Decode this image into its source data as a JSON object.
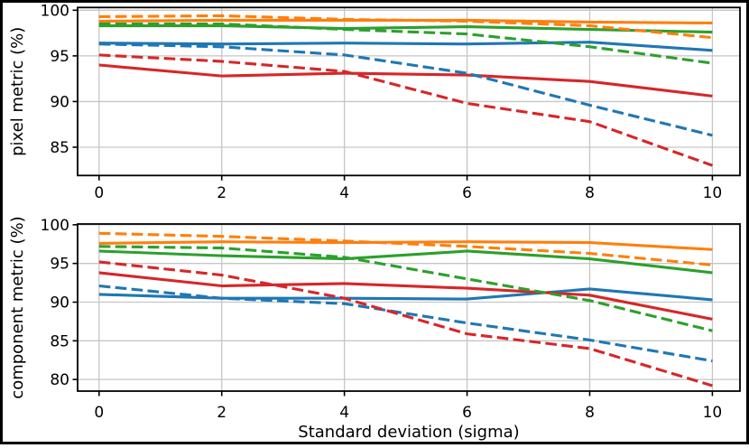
{
  "figure": {
    "kind": "dual-subplot line chart",
    "background": "#ffffff",
    "border_color": "#000000",
    "grid_color": "#c6c6c6",
    "spine_color": "#000000",
    "text_color": "#000000",
    "palette": {
      "blue": "#1f77b4",
      "orange": "#ff7f0e",
      "green": "#2ca02c",
      "red": "#d62728"
    }
  },
  "chart_data": [
    {
      "type": "line",
      "title": "",
      "xlabel": "",
      "ylabel": "pixel metric (%)",
      "x": [
        0,
        2,
        4,
        6,
        8,
        10
      ],
      "xticks": [
        "0",
        "2",
        "4",
        "6",
        "8",
        "10"
      ],
      "yticks": [
        85,
        90,
        95,
        100
      ],
      "xlim": [
        -0.35,
        10.45
      ],
      "ylim": [
        81.9,
        100.3
      ],
      "grid": true,
      "legend": false,
      "series": [
        {
          "name": "blue-solid",
          "color": "blue",
          "linestyle": "solid",
          "values": [
            96.4,
            96.3,
            96.4,
            96.3,
            96.5,
            95.6
          ]
        },
        {
          "name": "orange-solid",
          "color": "orange",
          "linestyle": "solid",
          "values": [
            98.8,
            98.9,
            98.9,
            98.9,
            98.7,
            98.6
          ]
        },
        {
          "name": "green-solid",
          "color": "green",
          "linestyle": "solid",
          "values": [
            98.3,
            98.3,
            98.0,
            98.2,
            97.9,
            97.6
          ]
        },
        {
          "name": "red-solid",
          "color": "red",
          "linestyle": "solid",
          "values": [
            94.0,
            92.8,
            93.1,
            92.9,
            92.2,
            90.6
          ]
        },
        {
          "name": "blue-dashed",
          "color": "blue",
          "linestyle": "dashed",
          "values": [
            96.3,
            96.0,
            95.1,
            93.1,
            89.6,
            86.3
          ]
        },
        {
          "name": "orange-dashed",
          "color": "orange",
          "linestyle": "dashed",
          "values": [
            99.3,
            99.4,
            99.0,
            98.8,
            98.3,
            97.0
          ]
        },
        {
          "name": "green-dashed",
          "color": "green",
          "linestyle": "dashed",
          "values": [
            98.5,
            98.5,
            97.9,
            97.4,
            96.0,
            94.2
          ]
        },
        {
          "name": "red-dashed",
          "color": "red",
          "linestyle": "dashed",
          "values": [
            95.1,
            94.4,
            93.3,
            89.8,
            87.8,
            83.0
          ]
        }
      ]
    },
    {
      "type": "line",
      "title": "",
      "xlabel": "Standard deviation (sigma)",
      "ylabel": "component metric (%)",
      "x": [
        0,
        2,
        4,
        6,
        8,
        10
      ],
      "xticks": [
        "0",
        "2",
        "4",
        "6",
        "8",
        "10"
      ],
      "yticks": [
        80,
        85,
        90,
        95,
        100
      ],
      "xlim": [
        -0.35,
        10.45
      ],
      "ylim": [
        78.5,
        100.1
      ],
      "grid": true,
      "legend": false,
      "series": [
        {
          "name": "blue-solid",
          "color": "blue",
          "linestyle": "solid",
          "values": [
            91.0,
            90.5,
            90.5,
            90.4,
            91.7,
            90.3
          ]
        },
        {
          "name": "orange-solid",
          "color": "orange",
          "linestyle": "solid",
          "values": [
            97.6,
            97.8,
            97.7,
            97.8,
            97.7,
            96.8
          ]
        },
        {
          "name": "green-solid",
          "color": "green",
          "linestyle": "solid",
          "values": [
            96.6,
            96.0,
            95.6,
            96.6,
            95.6,
            93.8
          ]
        },
        {
          "name": "red-solid",
          "color": "red",
          "linestyle": "solid",
          "values": [
            93.8,
            92.1,
            92.4,
            91.8,
            90.9,
            87.8
          ]
        },
        {
          "name": "blue-dashed",
          "color": "blue",
          "linestyle": "dashed",
          "values": [
            92.1,
            90.5,
            89.8,
            87.3,
            85.1,
            82.4
          ]
        },
        {
          "name": "orange-dashed",
          "color": "orange",
          "linestyle": "dashed",
          "values": [
            98.9,
            98.5,
            97.9,
            97.2,
            96.3,
            94.8
          ]
        },
        {
          "name": "green-dashed",
          "color": "green",
          "linestyle": "dashed",
          "values": [
            97.2,
            97.0,
            95.8,
            93.0,
            90.2,
            86.3
          ]
        },
        {
          "name": "red-dashed",
          "color": "red",
          "linestyle": "dashed",
          "values": [
            95.2,
            93.5,
            90.5,
            85.9,
            84.0,
            79.2
          ]
        }
      ]
    }
  ]
}
